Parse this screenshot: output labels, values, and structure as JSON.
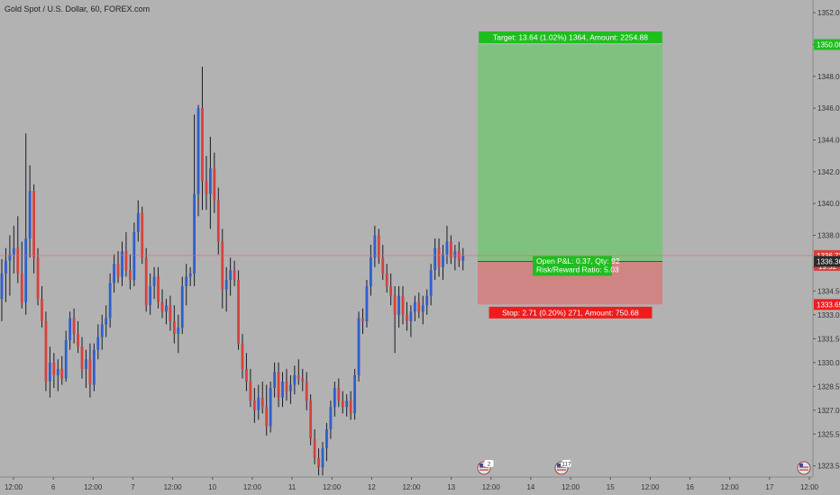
{
  "header": {
    "title": "Gold Spot / U.S. Dollar, 60, FOREX.com"
  },
  "colors": {
    "background": "#b2b2b2",
    "up": "#2d5fcf",
    "down": "#d6423d",
    "profit_zone": "#7fc27f",
    "loss_zone": "#d08585",
    "target_label": "#1fbe1f",
    "stop_label": "#ee1c1c",
    "price_line": "#e06a6a"
  },
  "chart_data": {
    "type": "candlestick",
    "title": "Gold Spot / U.S. Dollar, 60, FOREX.com",
    "ylim": [
      1322.8,
      1352.8
    ],
    "y_ticks": [
      "1352.00",
      "1350.00",
      "1348.00",
      "1346.00",
      "1344.00",
      "1342.00",
      "1340.00",
      "1338.00",
      "1336.00",
      "1334.50",
      "1333.00",
      "1331.50",
      "1330.00",
      "1328.50",
      "1327.00",
      "1325.50",
      "1323.50"
    ],
    "x_ticks": [
      "12:00",
      "6",
      "12:00",
      "7",
      "12:00",
      "10",
      "12:00",
      "11",
      "12:00",
      "12",
      "12:00",
      "13",
      "12:00",
      "14",
      "12:00",
      "15",
      "12:00",
      "16",
      "12:00",
      "17",
      "12:00"
    ],
    "position": {
      "type": "long",
      "entry": 1336.36,
      "target_price": 1350.0,
      "stop_price": 1333.65,
      "target_label": "Target: 13.64 (1.02%) 1364, Amount: 2254.88",
      "stop_label": "Stop: 2.71 (0.20%) 271, Amount: 750.68",
      "pnl_label": "Open P&L: 0.37, Qty: 92",
      "rr_label": "Risk/Reward Ratio: 5.03"
    },
    "price_labels": {
      "target": "1350.00",
      "current": "1336.73",
      "countdown": "19:52",
      "entry": "1336.36",
      "stop": "1333.65"
    },
    "current_price": 1336.73,
    "event_markers": [
      {
        "label": "2"
      },
      {
        "label": "117"
      },
      {
        "label": ""
      }
    ],
    "candles": [
      {
        "o": 1334.0,
        "h": 1336.5,
        "l": 1332.6,
        "c": 1335.6
      },
      {
        "o": 1335.6,
        "h": 1337.2,
        "l": 1333.8,
        "c": 1336.4
      },
      {
        "o": 1336.4,
        "h": 1338.0,
        "l": 1334.2,
        "c": 1336.8
      },
      {
        "o": 1336.8,
        "h": 1338.6,
        "l": 1335.6,
        "c": 1337.2
      },
      {
        "o": 1337.2,
        "h": 1339.2,
        "l": 1335.0,
        "c": 1335.6
      },
      {
        "o": 1335.6,
        "h": 1337.6,
        "l": 1333.4,
        "c": 1333.8
      },
      {
        "o": 1333.8,
        "h": 1344.4,
        "l": 1333.0,
        "c": 1337.8
      },
      {
        "o": 1337.8,
        "h": 1342.4,
        "l": 1336.6,
        "c": 1340.8
      },
      {
        "o": 1340.8,
        "h": 1341.2,
        "l": 1335.6,
        "c": 1336.6
      },
      {
        "o": 1336.6,
        "h": 1337.2,
        "l": 1333.6,
        "c": 1334.0
      },
      {
        "o": 1334.0,
        "h": 1334.8,
        "l": 1332.2,
        "c": 1332.6
      },
      {
        "o": 1332.6,
        "h": 1333.2,
        "l": 1328.2,
        "c": 1328.8
      },
      {
        "o": 1328.8,
        "h": 1331.0,
        "l": 1327.8,
        "c": 1330.0
      },
      {
        "o": 1330.0,
        "h": 1330.6,
        "l": 1328.4,
        "c": 1329.2
      },
      {
        "o": 1329.2,
        "h": 1330.2,
        "l": 1328.2,
        "c": 1329.6
      },
      {
        "o": 1329.6,
        "h": 1330.4,
        "l": 1328.6,
        "c": 1329.0
      },
      {
        "o": 1329.0,
        "h": 1332.0,
        "l": 1328.8,
        "c": 1331.4
      },
      {
        "o": 1331.4,
        "h": 1333.2,
        "l": 1330.8,
        "c": 1332.8
      },
      {
        "o": 1332.8,
        "h": 1333.4,
        "l": 1331.2,
        "c": 1331.8
      },
      {
        "o": 1331.8,
        "h": 1332.6,
        "l": 1330.6,
        "c": 1331.0
      },
      {
        "o": 1331.0,
        "h": 1331.6,
        "l": 1329.0,
        "c": 1329.6
      },
      {
        "o": 1329.6,
        "h": 1330.8,
        "l": 1328.4,
        "c": 1330.2
      },
      {
        "o": 1330.2,
        "h": 1331.2,
        "l": 1327.8,
        "c": 1328.6
      },
      {
        "o": 1328.6,
        "h": 1331.2,
        "l": 1328.2,
        "c": 1330.8
      },
      {
        "o": 1330.8,
        "h": 1332.4,
        "l": 1330.2,
        "c": 1331.6
      },
      {
        "o": 1331.6,
        "h": 1333.0,
        "l": 1330.8,
        "c": 1332.4
      },
      {
        "o": 1332.4,
        "h": 1333.6,
        "l": 1331.6,
        "c": 1332.8
      },
      {
        "o": 1332.8,
        "h": 1335.6,
        "l": 1332.2,
        "c": 1335.0
      },
      {
        "o": 1335.0,
        "h": 1336.8,
        "l": 1334.4,
        "c": 1336.2
      },
      {
        "o": 1336.2,
        "h": 1337.0,
        "l": 1335.0,
        "c": 1335.4
      },
      {
        "o": 1335.4,
        "h": 1337.6,
        "l": 1334.8,
        "c": 1337.0
      },
      {
        "o": 1337.0,
        "h": 1338.2,
        "l": 1335.4,
        "c": 1335.8
      },
      {
        "o": 1335.8,
        "h": 1336.8,
        "l": 1334.6,
        "c": 1335.2
      },
      {
        "o": 1335.2,
        "h": 1338.8,
        "l": 1334.8,
        "c": 1338.2
      },
      {
        "o": 1338.2,
        "h": 1340.2,
        "l": 1337.6,
        "c": 1339.4
      },
      {
        "o": 1339.4,
        "h": 1339.8,
        "l": 1336.2,
        "c": 1336.6
      },
      {
        "o": 1336.6,
        "h": 1337.2,
        "l": 1333.2,
        "c": 1333.6
      },
      {
        "o": 1333.6,
        "h": 1335.6,
        "l": 1333.0,
        "c": 1334.8
      },
      {
        "o": 1334.8,
        "h": 1336.0,
        "l": 1334.0,
        "c": 1335.4
      },
      {
        "o": 1335.4,
        "h": 1336.0,
        "l": 1333.4,
        "c": 1333.8
      },
      {
        "o": 1333.8,
        "h": 1334.6,
        "l": 1332.8,
        "c": 1333.2
      },
      {
        "o": 1333.2,
        "h": 1334.0,
        "l": 1332.4,
        "c": 1333.6
      },
      {
        "o": 1333.6,
        "h": 1334.2,
        "l": 1332.0,
        "c": 1332.6
      },
      {
        "o": 1332.6,
        "h": 1333.6,
        "l": 1331.2,
        "c": 1331.8
      },
      {
        "o": 1331.8,
        "h": 1333.0,
        "l": 1330.6,
        "c": 1332.2
      },
      {
        "o": 1332.2,
        "h": 1335.4,
        "l": 1331.8,
        "c": 1334.8
      },
      {
        "o": 1334.8,
        "h": 1336.2,
        "l": 1333.6,
        "c": 1335.4
      },
      {
        "o": 1335.4,
        "h": 1336.0,
        "l": 1334.8,
        "c": 1335.6
      },
      {
        "o": 1335.6,
        "h": 1345.6,
        "l": 1334.8,
        "c": 1340.6
      },
      {
        "o": 1340.6,
        "h": 1346.2,
        "l": 1339.2,
        "c": 1346.0
      },
      {
        "o": 1346.0,
        "h": 1348.6,
        "l": 1339.6,
        "c": 1341.4
      },
      {
        "o": 1341.4,
        "h": 1343.0,
        "l": 1339.6,
        "c": 1340.6
      },
      {
        "o": 1340.6,
        "h": 1344.2,
        "l": 1338.4,
        "c": 1342.2
      },
      {
        "o": 1342.2,
        "h": 1343.2,
        "l": 1339.4,
        "c": 1340.2
      },
      {
        "o": 1340.2,
        "h": 1341.0,
        "l": 1336.8,
        "c": 1337.6
      },
      {
        "o": 1337.6,
        "h": 1338.4,
        "l": 1333.4,
        "c": 1334.6
      },
      {
        "o": 1334.6,
        "h": 1336.0,
        "l": 1333.2,
        "c": 1335.2
      },
      {
        "o": 1335.2,
        "h": 1336.6,
        "l": 1334.2,
        "c": 1335.8
      },
      {
        "o": 1335.8,
        "h": 1336.4,
        "l": 1334.8,
        "c": 1335.2
      },
      {
        "o": 1335.2,
        "h": 1335.8,
        "l": 1330.8,
        "c": 1331.2
      },
      {
        "o": 1331.2,
        "h": 1331.8,
        "l": 1329.0,
        "c": 1329.6
      },
      {
        "o": 1329.6,
        "h": 1330.6,
        "l": 1328.2,
        "c": 1328.8
      },
      {
        "o": 1328.8,
        "h": 1329.6,
        "l": 1327.2,
        "c": 1327.6
      },
      {
        "o": 1327.6,
        "h": 1328.4,
        "l": 1326.2,
        "c": 1327.0
      },
      {
        "o": 1327.0,
        "h": 1328.6,
        "l": 1326.4,
        "c": 1327.8
      },
      {
        "o": 1327.8,
        "h": 1328.8,
        "l": 1326.8,
        "c": 1327.2
      },
      {
        "o": 1327.2,
        "h": 1328.6,
        "l": 1325.4,
        "c": 1326.0
      },
      {
        "o": 1326.0,
        "h": 1328.8,
        "l": 1325.6,
        "c": 1328.4
      },
      {
        "o": 1328.4,
        "h": 1330.0,
        "l": 1327.8,
        "c": 1329.4
      },
      {
        "o": 1329.4,
        "h": 1330.0,
        "l": 1327.2,
        "c": 1327.8
      },
      {
        "o": 1327.8,
        "h": 1329.4,
        "l": 1327.2,
        "c": 1328.8
      },
      {
        "o": 1328.8,
        "h": 1329.6,
        "l": 1327.6,
        "c": 1328.2
      },
      {
        "o": 1328.2,
        "h": 1329.2,
        "l": 1327.4,
        "c": 1328.6
      },
      {
        "o": 1328.6,
        "h": 1329.8,
        "l": 1328.0,
        "c": 1329.2
      },
      {
        "o": 1329.2,
        "h": 1330.2,
        "l": 1328.6,
        "c": 1329.0
      },
      {
        "o": 1329.0,
        "h": 1329.6,
        "l": 1328.2,
        "c": 1328.8
      },
      {
        "o": 1328.8,
        "h": 1329.4,
        "l": 1327.0,
        "c": 1327.6
      },
      {
        "o": 1327.6,
        "h": 1328.0,
        "l": 1324.8,
        "c": 1325.2
      },
      {
        "o": 1325.2,
        "h": 1325.8,
        "l": 1323.6,
        "c": 1324.0
      },
      {
        "o": 1324.0,
        "h": 1324.6,
        "l": 1322.9,
        "c": 1323.4
      },
      {
        "o": 1323.4,
        "h": 1325.0,
        "l": 1322.9,
        "c": 1324.6
      },
      {
        "o": 1324.6,
        "h": 1326.2,
        "l": 1323.8,
        "c": 1325.8
      },
      {
        "o": 1325.8,
        "h": 1327.6,
        "l": 1325.2,
        "c": 1327.2
      },
      {
        "o": 1327.2,
        "h": 1328.8,
        "l": 1326.6,
        "c": 1328.4
      },
      {
        "o": 1328.4,
        "h": 1329.0,
        "l": 1327.2,
        "c": 1327.6
      },
      {
        "o": 1327.6,
        "h": 1328.2,
        "l": 1326.8,
        "c": 1327.2
      },
      {
        "o": 1327.2,
        "h": 1328.0,
        "l": 1326.6,
        "c": 1327.6
      },
      {
        "o": 1327.6,
        "h": 1328.2,
        "l": 1326.4,
        "c": 1326.8
      },
      {
        "o": 1326.8,
        "h": 1329.6,
        "l": 1326.4,
        "c": 1329.2
      },
      {
        "o": 1329.2,
        "h": 1333.2,
        "l": 1328.8,
        "c": 1332.8
      },
      {
        "o": 1332.8,
        "h": 1333.4,
        "l": 1331.8,
        "c": 1332.6
      },
      {
        "o": 1332.6,
        "h": 1335.2,
        "l": 1332.2,
        "c": 1334.8
      },
      {
        "o": 1334.8,
        "h": 1337.4,
        "l": 1334.2,
        "c": 1336.6
      },
      {
        "o": 1336.6,
        "h": 1338.6,
        "l": 1336.0,
        "c": 1338.0
      },
      {
        "o": 1338.0,
        "h": 1338.4,
        "l": 1336.2,
        "c": 1336.6
      },
      {
        "o": 1336.6,
        "h": 1337.4,
        "l": 1335.2,
        "c": 1335.6
      },
      {
        "o": 1335.6,
        "h": 1336.2,
        "l": 1334.4,
        "c": 1334.8
      },
      {
        "o": 1334.8,
        "h": 1335.6,
        "l": 1333.6,
        "c": 1334.2
      },
      {
        "o": 1334.2,
        "h": 1334.8,
        "l": 1330.6,
        "c": 1333.0
      },
      {
        "o": 1333.0,
        "h": 1334.8,
        "l": 1332.2,
        "c": 1334.2
      },
      {
        "o": 1334.2,
        "h": 1334.8,
        "l": 1332.4,
        "c": 1333.0
      },
      {
        "o": 1333.0,
        "h": 1333.8,
        "l": 1332.0,
        "c": 1332.6
      },
      {
        "o": 1332.6,
        "h": 1333.6,
        "l": 1331.6,
        "c": 1333.2
      },
      {
        "o": 1333.2,
        "h": 1334.2,
        "l": 1332.6,
        "c": 1333.8
      },
      {
        "o": 1333.8,
        "h": 1334.4,
        "l": 1332.8,
        "c": 1333.2
      },
      {
        "o": 1333.2,
        "h": 1334.2,
        "l": 1332.4,
        "c": 1333.6
      },
      {
        "o": 1333.6,
        "h": 1334.6,
        "l": 1333.0,
        "c": 1334.2
      },
      {
        "o": 1334.2,
        "h": 1336.2,
        "l": 1333.6,
        "c": 1335.8
      },
      {
        "o": 1335.8,
        "h": 1337.8,
        "l": 1335.2,
        "c": 1337.2
      },
      {
        "o": 1337.2,
        "h": 1337.8,
        "l": 1335.4,
        "c": 1336.0
      },
      {
        "o": 1336.0,
        "h": 1337.4,
        "l": 1335.2,
        "c": 1336.8
      },
      {
        "o": 1336.8,
        "h": 1338.6,
        "l": 1336.2,
        "c": 1337.6
      },
      {
        "o": 1337.6,
        "h": 1338.0,
        "l": 1336.2,
        "c": 1336.6
      },
      {
        "o": 1336.6,
        "h": 1337.4,
        "l": 1335.8,
        "c": 1337.0
      },
      {
        "o": 1337.0,
        "h": 1337.6,
        "l": 1336.0,
        "c": 1336.4
      },
      {
        "o": 1336.4,
        "h": 1337.2,
        "l": 1335.8,
        "c": 1336.73
      }
    ]
  }
}
